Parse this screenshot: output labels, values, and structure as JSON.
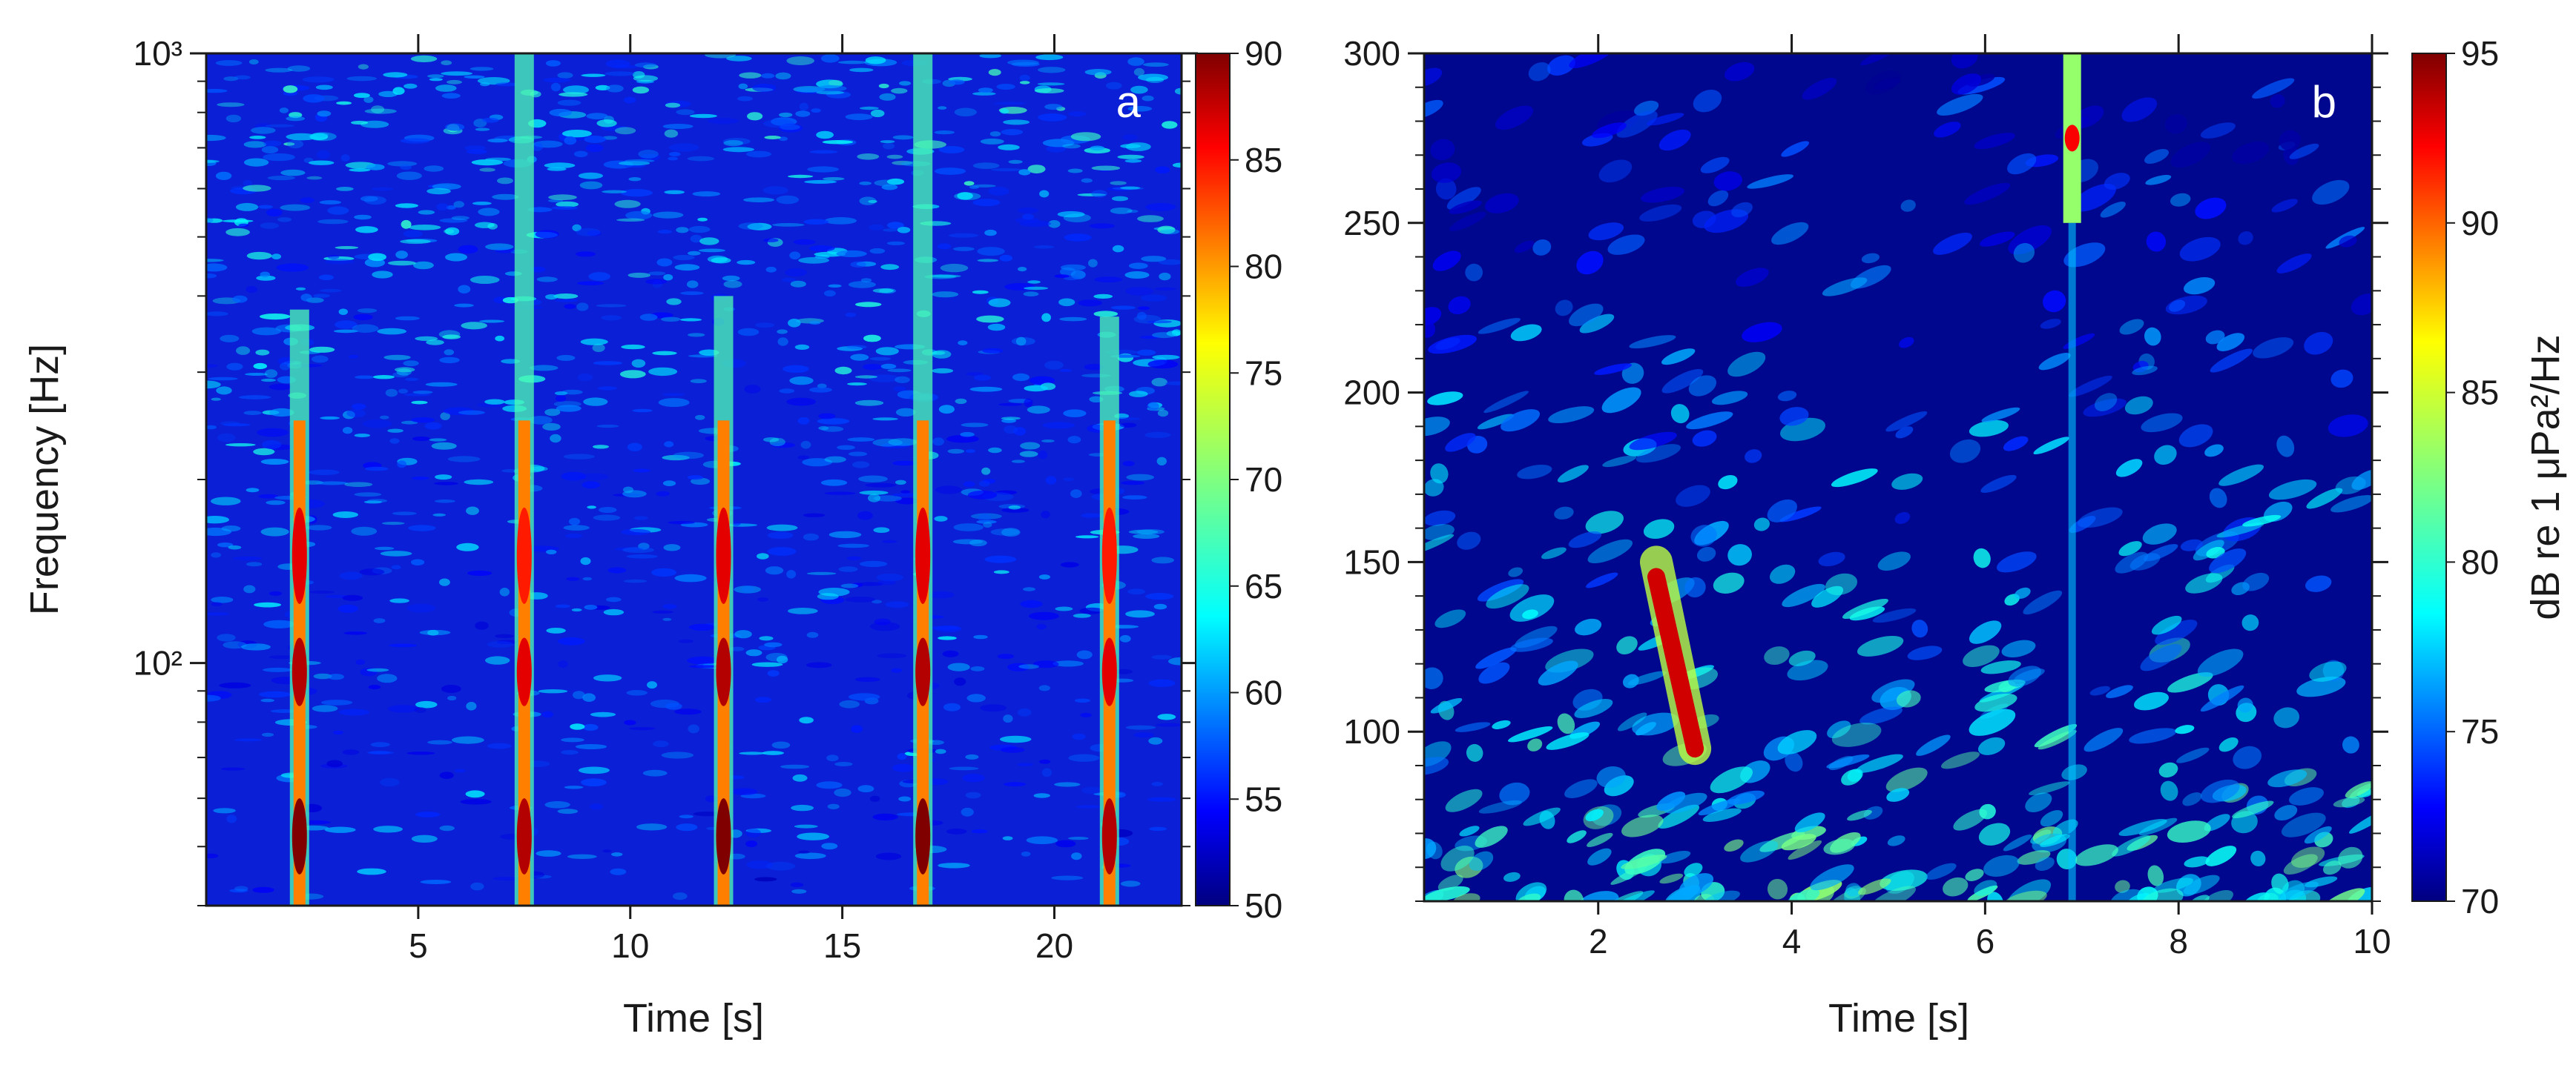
{
  "figure": {
    "panels": [
      {
        "letter": "a",
        "xlabel": "Time [s]",
        "ylabel": "Frequency [Hz]",
        "colorbar_label": "",
        "colormap": "jet"
      },
      {
        "letter": "b",
        "xlabel": "Time [s]",
        "ylabel": "",
        "colorbar_label": "dB re 1 μPa²/Hz",
        "colormap": "jet"
      }
    ]
  },
  "chart_data": [
    {
      "type": "heatmap",
      "panel": "a",
      "title": "",
      "xlabel": "Time [s]",
      "ylabel": "Frequency [Hz]",
      "xlim": [
        0,
        23
      ],
      "ylim": [
        40,
        1000
      ],
      "yscale": "log",
      "xticks": [
        5,
        10,
        15,
        20
      ],
      "xtick_labels": [
        "5",
        "10",
        "15",
        "20"
      ],
      "yticks": [
        100,
        1000
      ],
      "ytick_labels": [
        "10²",
        "10³"
      ],
      "colorbar": {
        "label": "",
        "min": 50,
        "max": 90,
        "ticks": [
          50,
          55,
          60,
          65,
          70,
          75,
          80,
          85,
          90
        ],
        "tick_labels": [
          "50",
          "55",
          "60",
          "65",
          "70",
          "75",
          "80",
          "85",
          "90"
        ]
      },
      "background_level": 55,
      "calls": [
        {
          "t": 2.2,
          "fmin": 40,
          "fmax": 380,
          "peak_db": 90
        },
        {
          "t": 7.5,
          "fmin": 40,
          "fmax": 1000,
          "peak_db": 88
        },
        {
          "t": 12.2,
          "fmin": 40,
          "fmax": 400,
          "peak_db": 90
        },
        {
          "t": 16.9,
          "fmin": 40,
          "fmax": 1000,
          "peak_db": 90
        },
        {
          "t": 21.3,
          "fmin": 40,
          "fmax": 370,
          "peak_db": 88
        }
      ]
    },
    {
      "type": "heatmap",
      "panel": "b",
      "title": "",
      "xlabel": "Time [s]",
      "ylabel": "",
      "xlim": [
        0.2,
        10
      ],
      "ylim": [
        50,
        300
      ],
      "yscale": "linear",
      "xticks": [
        2,
        4,
        6,
        8,
        10
      ],
      "xtick_labels": [
        "2",
        "4",
        "6",
        "8",
        "10"
      ],
      "yticks": [
        100,
        150,
        200,
        250,
        300
      ],
      "ytick_labels": [
        "100",
        "150",
        "200",
        "250",
        "300"
      ],
      "colorbar": {
        "label": "dB re 1 μPa²/Hz",
        "min": 70,
        "max": 95,
        "ticks": [
          70,
          75,
          80,
          85,
          90,
          95
        ],
        "tick_labels": [
          "70",
          "75",
          "80",
          "85",
          "90",
          "95"
        ]
      },
      "background_level": 72,
      "calls": [
        {
          "t_start": 2.6,
          "t_end": 3.0,
          "fmin": 95,
          "fmax": 150,
          "peak_db": 95
        },
        {
          "t": 6.9,
          "fmin": 250,
          "fmax": 300,
          "peak_db": 92
        }
      ]
    }
  ]
}
